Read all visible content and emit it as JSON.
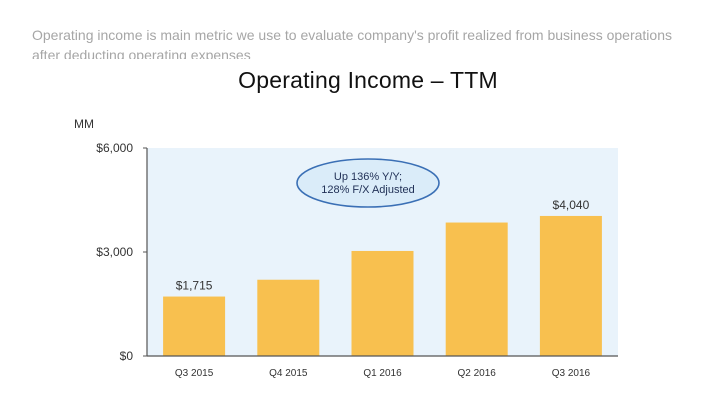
{
  "intro_text": "Operating income is main metric we use to evaluate company's profit realized from business operations after deducting operating expenses",
  "colors": {
    "bar": "#f8c04f",
    "plot_background": "#e9f3fb",
    "callout_fill": "#daecf9",
    "callout_stroke": "#3a6fb5",
    "axis": "#555555",
    "text": "#333333"
  },
  "chart_data": {
    "type": "bar",
    "title": "Operating Income – TTM",
    "unit_label": "MM",
    "categories": [
      "Q3 2015",
      "Q4 2015",
      "Q1 2016",
      "Q2 2016",
      "Q3 2016"
    ],
    "values": [
      1715,
      2200,
      3030,
      3850,
      4040
    ],
    "data_labels": [
      "$1,715",
      "",
      "",
      "",
      "$4,040"
    ],
    "yticks": [
      0,
      3000,
      6000
    ],
    "ytick_labels": [
      "$0",
      "$3,000",
      "$6,000"
    ],
    "ylim": [
      0,
      6000
    ],
    "annotation": [
      "Up 136% Y/Y;",
      "128% F/X Adjusted"
    ],
    "grid": false,
    "legend": "none"
  }
}
